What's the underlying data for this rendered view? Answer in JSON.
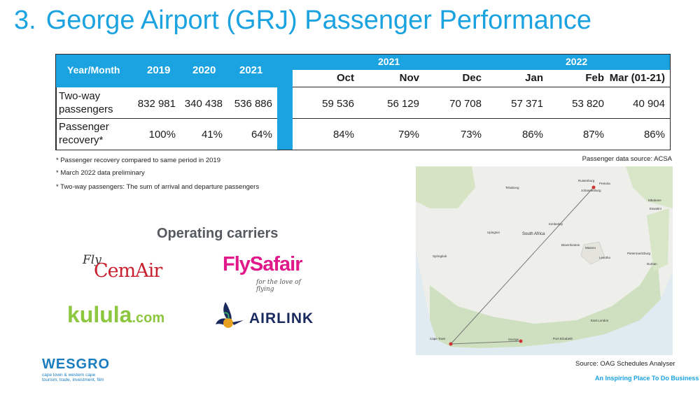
{
  "title": {
    "number": "3.",
    "text": "George Airport (GRJ) Passenger Performance"
  },
  "table": {
    "row_header": "Year/Month",
    "years": [
      "2019",
      "2020",
      "2021"
    ],
    "group_2021": "2021",
    "group_2022": "2022",
    "months": [
      "Oct",
      "Nov",
      "Dec",
      "Jan",
      "Feb",
      "Mar (01-21)"
    ],
    "rows": [
      {
        "label_line1": "Two-way",
        "label_line2": "passengers",
        "years": [
          "832 981",
          "340 438",
          "536 886"
        ],
        "months": [
          "59 536",
          "56 129",
          "70 708",
          "57 371",
          "53 820",
          "40 904"
        ]
      },
      {
        "label_line1": "Passenger",
        "label_line2": "recovery*",
        "years": [
          "100%",
          "41%",
          "64%"
        ],
        "months": [
          "84%",
          "79%",
          "73%",
          "86%",
          "87%",
          "86%"
        ]
      }
    ]
  },
  "notes": [
    "* Passenger recovery compared to same period in 2019",
    "* March 2022 data preliminary",
    "* Two-way passengers: The sum of arrival and departure passengers"
  ],
  "source_top": "Passenger data source: ACSA",
  "source_bottom": "Source: OAG Schedules Analyser",
  "carriers": {
    "heading": "Operating carriers",
    "cemair_fly": "Fly",
    "cemair": "CemAir",
    "flysafair": "FlySafair",
    "flysafair_tag": "for the love of flying",
    "kulula": "kulula",
    "kulula_com": ".com",
    "airlink": "AIRLINK"
  },
  "map_labels": {
    "country": "South Africa",
    "cities": [
      "Johannesburg",
      "Pretoria",
      "Rustenburg",
      "Tshabong",
      "Kimberley",
      "Bloemfontein",
      "Maseru",
      "Lesotho",
      "Pietermaritzburg",
      "Durban",
      "Upington",
      "Springbok",
      "East London",
      "Port Elizabeth",
      "George",
      "Cape Town",
      "Mbabane",
      "Eswatini"
    ]
  },
  "footer": {
    "logo": "WESGRO",
    "sub1": "cape town & western cape",
    "sub2": "tourism, trade, investment, film",
    "tagline": "An Inspiring Place To Do Business"
  },
  "colors": {
    "accent": "#1aa3e0",
    "cemair_red": "#c8202e",
    "flysafair_pink": "#e0188a",
    "kulula_green": "#8dc63f",
    "airlink_navy": "#1b2a5e"
  }
}
